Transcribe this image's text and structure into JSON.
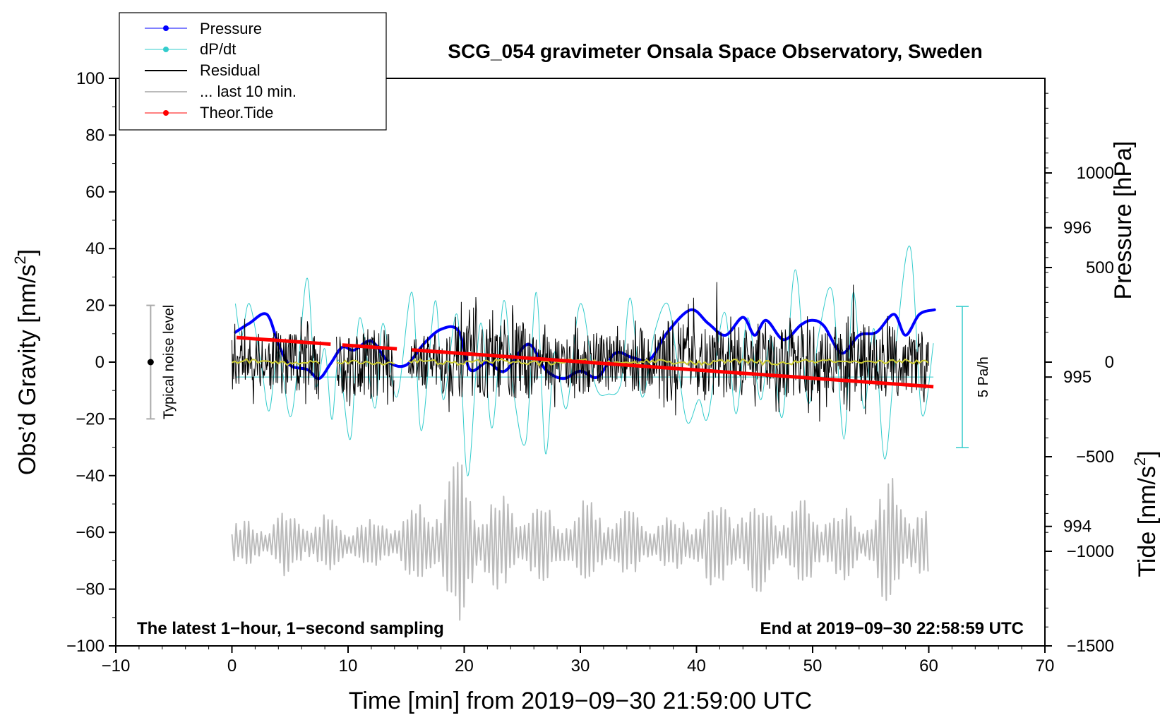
{
  "chart_data": {
    "type": "line",
    "title": "SCG_054 gravimeter Onsala Space Observatory, Sweden",
    "xlabel_text": "Time [min] from 2019−09−30 21:59:00 UTC",
    "ylabel_text": "Obs’d Gravity [nm/s",
    "ylabel_sup": "2",
    "ylabel_close": "]",
    "y2label": "Pressure [hPa]",
    "y3label_text": "Tide [nm/s",
    "y3label_sup": "2",
    "y3label_close": "]",
    "xlim": [
      -10,
      70
    ],
    "ylim": [
      -100,
      100
    ],
    "pressure_axis": {
      "range": [
        993.2,
        997.0
      ],
      "ticks": [
        994,
        995,
        996
      ]
    },
    "tide_axis": {
      "range": [
        -1500,
        1500
      ],
      "ticks": [
        1000,
        500,
        0,
        -500,
        -1000,
        -1500
      ]
    },
    "x_ticks": [
      -10,
      0,
      10,
      20,
      30,
      40,
      50,
      60,
      70
    ],
    "y_ticks": [
      100,
      80,
      60,
      40,
      20,
      0,
      -20,
      -40,
      -60,
      -80,
      -100
    ],
    "x_tick_labels": [
      "−10",
      "0",
      "10",
      "20",
      "30",
      "40",
      "50",
      "60",
      "70"
    ],
    "y_tick_labels": [
      "100",
      "80",
      "60",
      "40",
      "20",
      "0",
      "−20",
      "−40",
      "−60",
      "−80",
      "−100"
    ],
    "tide_tick_labels": [
      "1000",
      "500",
      "0",
      "−500",
      "−1000",
      "−1500"
    ],
    "legend": {
      "position": "top-left",
      "entries": [
        {
          "label": "Pressure",
          "color": "#0000ff"
        },
        {
          "label": "dP/dt",
          "color": "#33cccc"
        },
        {
          "label": "Residual",
          "color": "#000000"
        },
        {
          "label": "... last 10 min.",
          "color": "#bbbbbb"
        },
        {
          "label": "Theor.Tide",
          "color": "#ff0000"
        }
      ]
    },
    "series": [
      {
        "name": "Pressure",
        "axis": "pressure_hPa",
        "color": "#0000ff",
        "x": [
          0.3,
          1.5,
          3,
          4,
          5,
          6.5,
          7.5,
          8.5,
          9.5,
          10.5,
          12,
          13.5,
          15,
          16.5,
          18,
          19.5,
          20.5,
          22,
          23.5,
          25.5,
          27,
          28.5,
          30,
          31.5,
          33,
          34.5,
          36,
          37.5,
          39.5,
          41,
          42.5,
          44,
          45,
          46,
          47.5,
          49,
          50,
          51,
          52.5,
          54,
          55.5,
          57,
          58,
          59.2,
          60.5
        ],
        "y": [
          995.3,
          995.36,
          995.42,
          995.22,
          995.08,
          995.05,
          994.99,
          995.09,
          995.2,
          995.18,
          995.24,
          995.1,
          995.08,
          995.22,
          995.32,
          995.31,
          995.05,
          995.1,
          995.04,
          995.22,
          995.05,
          994.99,
          995.04,
          995.0,
          995.16,
          995.13,
          995.12,
          995.3,
          995.45,
          995.36,
          995.28,
          995.4,
          995.28,
          995.38,
          995.25,
          995.35,
          995.38,
          995.34,
          995.16,
          995.28,
          995.3,
          995.42,
          995.28,
          995.42,
          995.45
        ]
      },
      {
        "name": "dP/dt",
        "axis": "dPdt_Pa_per_h",
        "color": "#33cccc",
        "zero_line_pressure": 995.0,
        "x": [
          0.3,
          0.8,
          1.5,
          2.5,
          3.2,
          4,
          5,
          5.7,
          6.5,
          7.2,
          8,
          8.6,
          9.2,
          10.2,
          11,
          12.3,
          13,
          14.2,
          15.5,
          16.3,
          17.5,
          18.2,
          19.4,
          20.3,
          21.4,
          22.4,
          23.4,
          24.2,
          25.3,
          26.2,
          27,
          27.8,
          28.8,
          30,
          31.3,
          32.4,
          33.5,
          34.3,
          35.3,
          36.4,
          37.5,
          38.3,
          39.2,
          40.2,
          41,
          42.4,
          43.4,
          44.4,
          45.5,
          46.4,
          47.4,
          48.5,
          49.6,
          50.6,
          51.7,
          52.7,
          53.5,
          54.4,
          55.3,
          56.2,
          57.2,
          58.4,
          59.4,
          60.4
        ],
        "y": [
          2.6,
          1.4,
          2.6,
          0.5,
          -1.2,
          0.9,
          -1.4,
          0.5,
          3.5,
          -0.3,
          1.0,
          -1.5,
          0.6,
          -2.2,
          2.1,
          -1.1,
          1.9,
          -0.7,
          3.0,
          -1.9,
          2.7,
          -0.8,
          2.2,
          -3.5,
          1.9,
          -1.8,
          2.7,
          -0.4,
          -2.3,
          3.0,
          -2.7,
          0.9,
          -1.1,
          2.6,
          -0.3,
          -0.6,
          -0.2,
          2.8,
          -0.7,
          1.6,
          2.6,
          0.7,
          -1.6,
          -0.8,
          -1.4,
          2.3,
          -1.3,
          2.1,
          -0.8,
          1.4,
          -1.4,
          3.8,
          -0.9,
          1.7,
          3.0,
          -2.2,
          3.0,
          -1.1,
          1.7,
          -2.9,
          1.2,
          4.6,
          -1.3,
          1.2
        ]
      },
      {
        "name": "Residual",
        "axis": "gravity_nm_s2",
        "color": "#000000",
        "segments": [
          [
            0,
            7.6
          ],
          [
            9,
            14
          ],
          [
            15.2,
            60
          ]
        ],
        "envelope_x": [
          0,
          3,
          5,
          7.5,
          9,
          12,
          14,
          15.2,
          18,
          20,
          22,
          25,
          27,
          30,
          33,
          35,
          38,
          40,
          43,
          45,
          48,
          50,
          52,
          53,
          55,
          57,
          60
        ],
        "envelope_y": [
          14,
          17,
          20,
          16,
          18,
          22,
          15,
          14,
          18,
          22,
          20,
          24,
          16,
          18,
          16,
          20,
          25,
          20,
          22,
          18,
          22,
          24,
          16,
          30,
          20,
          22,
          18
        ]
      },
      {
        "name": "Residual smoothed",
        "axis": "gravity_nm_s2",
        "color": "#cccc33",
        "segments": [
          [
            0,
            7.6
          ],
          [
            9,
            14
          ],
          [
            15.2,
            60
          ]
        ],
        "y_level": 0
      },
      {
        "name": "... last 10 min.",
        "axis": "gravity_nm_s2",
        "color": "#bbbbbb",
        "x_range": [
          0,
          60
        ],
        "center": -64,
        "envelope_x": [
          0,
          5,
          10,
          15,
          17,
          19,
          20,
          22,
          25,
          28,
          30,
          33,
          35,
          38,
          40,
          43,
          45,
          48,
          50,
          53,
          55,
          57,
          59,
          60
        ],
        "envelope_y": [
          8,
          12,
          10,
          12,
          20,
          33,
          30,
          20,
          16,
          14,
          18,
          14,
          12,
          10,
          14,
          20,
          18,
          16,
          18,
          14,
          12,
          28,
          16,
          12
        ]
      },
      {
        "name": "Theor.Tide",
        "axis": "tide_nm_s2",
        "color": "#ff0000",
        "segments": [
          [
            0.4,
            8.5
          ],
          [
            9.5,
            14.2
          ],
          [
            15.5,
            60.4
          ]
        ],
        "x": [
          0.4,
          60.4
        ],
        "y": [
          130,
          -130
        ]
      }
    ],
    "noise_bar": {
      "label": "Typical noise level",
      "x": -7,
      "y": 0,
      "half_range": 20
    },
    "dpdt_scale_bar": {
      "label": "5 Pa/h"
    },
    "annotations": {
      "bottom_left": "The latest 1−hour, 1−second sampling",
      "bottom_right": "End at 2019−09−30 22:58:59 UTC"
    }
  }
}
